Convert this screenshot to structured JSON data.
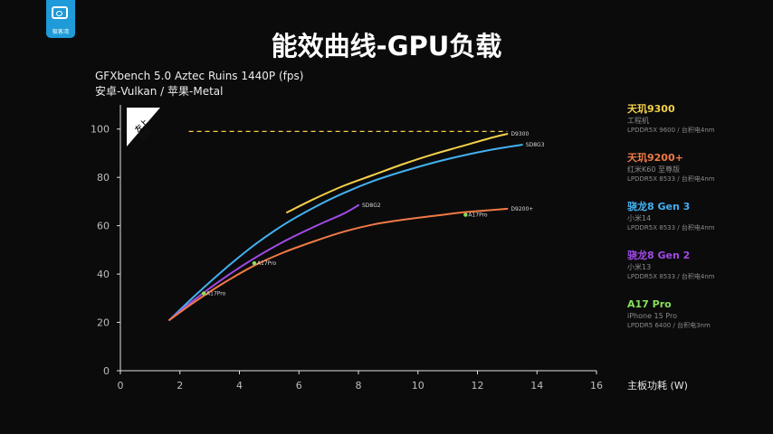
{
  "logo": {
    "icon": "camera-icon",
    "text": "极客湾"
  },
  "title": "能效曲线-GPU负载",
  "subtitle": {
    "line1": "GFXbench 5.0 Aztec Ruins 1440P (fps)",
    "line2": "安卓-Vulkan / 苹果-Metal"
  },
  "badge": {
    "line1": "左上",
    "line2": "更好"
  },
  "legend": [
    {
      "name": "天玑9300",
      "device": "工程机",
      "spec": "LPDDR5X 9600 / 台积电4nm",
      "color": "#f5d04a"
    },
    {
      "name": "天玑9200+",
      "device": "红米K60 至尊版",
      "spec": "LPDDR5X 8533 / 台积电4nm",
      "color": "#f07a45"
    },
    {
      "name": "骁龙8 Gen 3",
      "device": "小米14",
      "spec": "LPDDR5X 8533 / 台积电4nm",
      "color": "#43b1ef"
    },
    {
      "name": "骁龙8 Gen 2",
      "device": "小米13",
      "spec": "LPDDR5X 8533 / 台积电4nm",
      "color": "#a04be5"
    },
    {
      "name": "A17 Pro",
      "device": "iPhone 15 Pro",
      "spec": "LPDDR5 6400 / 台积电3nm",
      "color": "#86e05a"
    }
  ],
  "chart_data": {
    "type": "line",
    "xlabel": "主板功耗 (W)",
    "ylabel": "",
    "xlim": [
      0,
      16
    ],
    "ylim": [
      0,
      110
    ],
    "xticks": [
      0,
      2,
      4,
      6,
      8,
      10,
      12,
      14,
      16
    ],
    "yticks": [
      0,
      20,
      40,
      60,
      80,
      100
    ],
    "grid": false,
    "legend_position": "right",
    "series": [
      {
        "name": "D9300",
        "color": "#f5d04a",
        "points": [
          [
            5.6,
            65.5
          ],
          [
            6.5,
            71
          ],
          [
            7.5,
            76.5
          ],
          [
            8.5,
            81
          ],
          [
            9.5,
            85.5
          ],
          [
            10.5,
            89.5
          ],
          [
            11.5,
            93
          ],
          [
            12.5,
            96.5
          ],
          [
            13,
            98
          ]
        ],
        "end_label": "D9300"
      },
      {
        "name": "SD8G3",
        "color": "#43b1ef",
        "points": [
          [
            1.65,
            21
          ],
          [
            2.5,
            31
          ],
          [
            3.5,
            42
          ],
          [
            4.5,
            52
          ],
          [
            5.5,
            60.5
          ],
          [
            6.5,
            67.5
          ],
          [
            7.5,
            73.5
          ],
          [
            8.5,
            78.5
          ],
          [
            9.5,
            82.5
          ],
          [
            10.5,
            86
          ],
          [
            11.5,
            89
          ],
          [
            12.5,
            91.5
          ],
          [
            13.5,
            93.5
          ]
        ],
        "end_label": "SD8G3"
      },
      {
        "name": "SD8G2",
        "color": "#a04be5",
        "points": [
          [
            1.65,
            21
          ],
          [
            2.5,
            29.5
          ],
          [
            3.5,
            38.5
          ],
          [
            4.5,
            46.5
          ],
          [
            5.5,
            53.5
          ],
          [
            6.5,
            59.5
          ],
          [
            7.5,
            65
          ],
          [
            8,
            68.5
          ]
        ],
        "end_label": "SD8G2"
      },
      {
        "name": "D9200+",
        "color": "#f07a45",
        "points": [
          [
            1.65,
            21
          ],
          [
            2.5,
            28.5
          ],
          [
            3.5,
            36.5
          ],
          [
            4.5,
            43.5
          ],
          [
            5.5,
            49
          ],
          [
            6.5,
            53.5
          ],
          [
            7.5,
            57.5
          ],
          [
            8.5,
            60.5
          ],
          [
            9.5,
            62.5
          ],
          [
            10.5,
            64
          ],
          [
            11.5,
            65.5
          ],
          [
            12.5,
            66.5
          ],
          [
            13,
            67
          ]
        ],
        "end_label": "D9200+"
      }
    ],
    "reference_line": {
      "value": 99,
      "x_from": 2.3,
      "x_to": 13,
      "color": "#f5d04a",
      "style": "dashed"
    },
    "a17_points": {
      "color": "#86e05a",
      "label": "A17Pro",
      "points": [
        [
          2.8,
          32
        ],
        [
          4.5,
          44.5
        ],
        [
          11.6,
          64.5
        ]
      ]
    }
  }
}
